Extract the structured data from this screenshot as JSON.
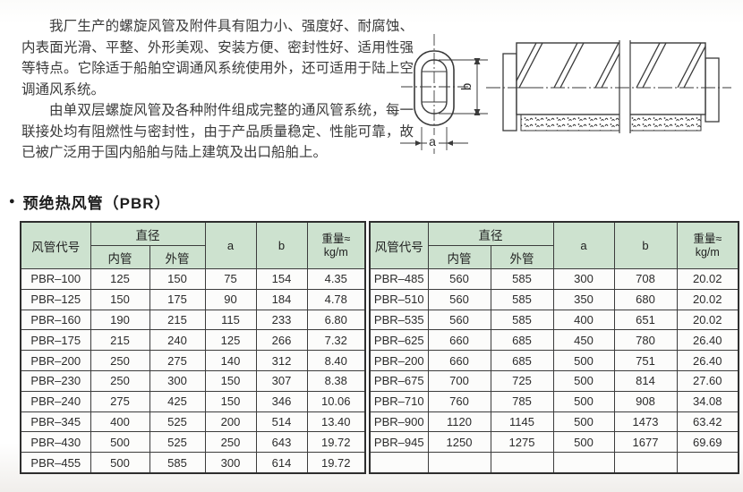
{
  "intro": {
    "paragraphs": [
      "我厂生产的螺旋风管及附件具有阻力小、强度好、耐腐蚀、内表面光滑、平整、外形美观、安装方便、密封性好、适用性强等特点。它除适于船舶空调通风系统使用外，还可适用于陆上空调通风系统。",
      "由单双层螺旋风管及各种附件组成完整的通风管系统，每一联接处均有阻燃性与密封性，由于产品质量稳定、性能可靠，故已被广泛用于国内船舶与陆上建筑及出口船舶上。"
    ]
  },
  "section": {
    "bullet": "●",
    "title": "预绝热风管（PBR）"
  },
  "diagram": {
    "label_a": "a",
    "label_b": "b"
  },
  "table": {
    "headers": {
      "code": "风管代号",
      "diameter": "直径",
      "inner": "内管",
      "outer": "外管",
      "a": "a",
      "b": "b",
      "weight_top": "重量≈",
      "weight_bottom": "kg/m"
    },
    "left_rows": [
      [
        "PBR–100",
        "125",
        "150",
        "75",
        "154",
        "4.35"
      ],
      [
        "PBR–125",
        "150",
        "175",
        "90",
        "184",
        "4.78"
      ],
      [
        "PBR–160",
        "190",
        "215",
        "115",
        "233",
        "6.80"
      ],
      [
        "PBR–175",
        "215",
        "240",
        "125",
        "266",
        "7.32"
      ],
      [
        "PBR–200",
        "250",
        "275",
        "140",
        "312",
        "8.40"
      ],
      [
        "PBR–230",
        "250",
        "300",
        "150",
        "307",
        "8.38"
      ],
      [
        "PBR–240",
        "275",
        "425",
        "150",
        "346",
        "10.06"
      ],
      [
        "PBR–345",
        "400",
        "525",
        "200",
        "514",
        "13.40"
      ],
      [
        "PBR–430",
        "500",
        "525",
        "250",
        "643",
        "19.72"
      ],
      [
        "PBR–455",
        "500",
        "585",
        "300",
        "614",
        "19.72"
      ]
    ],
    "right_rows": [
      [
        "PBR–485",
        "560",
        "585",
        "300",
        "708",
        "20.02"
      ],
      [
        "PBR–510",
        "560",
        "585",
        "350",
        "680",
        "20.02"
      ],
      [
        "PBR–535",
        "560",
        "585",
        "400",
        "651",
        "20.02"
      ],
      [
        "PBR–625",
        "660",
        "685",
        "450",
        "780",
        "26.40"
      ],
      [
        "PBR–200",
        "660",
        "685",
        "500",
        "751",
        "26.40"
      ],
      [
        "PBR–675",
        "700",
        "725",
        "500",
        "814",
        "27.60"
      ],
      [
        "PBR–710",
        "760",
        "785",
        "500",
        "908",
        "34.08"
      ],
      [
        "PBR–900",
        "1120",
        "1145",
        "500",
        "1473",
        "63.42"
      ],
      [
        "PBR–945",
        "1250",
        "1275",
        "500",
        "1677",
        "69.69"
      ],
      [
        "",
        "",
        "",
        "",
        "",
        ""
      ]
    ]
  },
  "colors": {
    "header_green": "#cde2cf",
    "border": "#3c3c3c",
    "ink": "#3a3a3a"
  }
}
